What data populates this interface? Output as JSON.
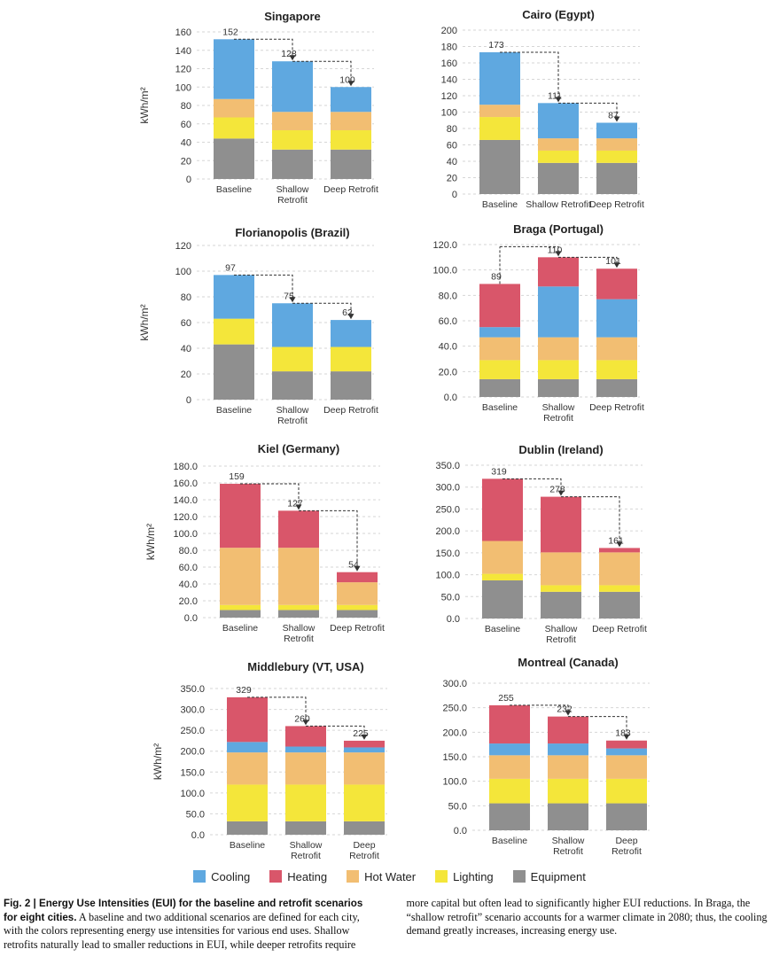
{
  "colors": {
    "Cooling": "#5fa8e0",
    "Heating": "#d9566a",
    "Hot Water": "#f2be72",
    "Lighting": "#f4e63a",
    "Equipment": "#8f8f8f"
  },
  "legend": [
    "Cooling",
    "Heating",
    "Hot Water",
    "Lighting",
    "Equipment"
  ],
  "caption": {
    "bold": "Fig. 2 | Energy Use Intensities (EUI) for the baseline and retrofit scenarios for eight cities.",
    "text": "A baseline and two additional scenarios are defined for each city, with the colors representing energy use intensities for various end uses. Shallow retrofits naturally lead to smaller reductions in EUI, while deeper retrofits require more capital but often lead to significantly higher EUI reductions. In Braga, the “shallow retrofit” scenario accounts for a warmer climate in 2080; thus, the cooling demand greatly increases, increasing energy use."
  },
  "chart_data": [
    {
      "type": "bar",
      "stacked": true,
      "title": "Singapore",
      "ylabel": "kWh/m²",
      "ylim": [
        0,
        160
      ],
      "yticks": [
        "0",
        "20",
        "40",
        "60",
        "80",
        "100",
        "120",
        "140",
        "160"
      ],
      "categories": [
        "Baseline",
        "Shallow\nRetrofit",
        "Deep Retrofit"
      ],
      "totals": [
        "152",
        "128",
        "100"
      ],
      "series": [
        {
          "name": "Equipment",
          "values": [
            44,
            32,
            32
          ]
        },
        {
          "name": "Lighting",
          "values": [
            23,
            21,
            21
          ]
        },
        {
          "name": "Hot Water",
          "values": [
            20,
            20,
            20
          ]
        },
        {
          "name": "Heating",
          "values": [
            0,
            0,
            0
          ]
        },
        {
          "name": "Cooling",
          "values": [
            65,
            55,
            27
          ]
        }
      ]
    },
    {
      "type": "bar",
      "stacked": true,
      "title": "Cairo (Egypt)",
      "ylabel": "",
      "ylim": [
        0,
        200
      ],
      "yticks": [
        "0",
        "20",
        "40",
        "60",
        "80",
        "100",
        "120",
        "140",
        "160",
        "180",
        "200"
      ],
      "categories": [
        "Baseline",
        "Shallow Retrofit",
        "Deep Retrofit"
      ],
      "totals": [
        "173",
        "111",
        "87"
      ],
      "series": [
        {
          "name": "Equipment",
          "values": [
            66,
            38,
            38
          ]
        },
        {
          "name": "Lighting",
          "values": [
            28,
            15,
            15
          ]
        },
        {
          "name": "Hot Water",
          "values": [
            15,
            15,
            15
          ]
        },
        {
          "name": "Heating",
          "values": [
            0,
            0,
            0
          ]
        },
        {
          "name": "Cooling",
          "values": [
            64,
            43,
            19
          ]
        }
      ]
    },
    {
      "type": "bar",
      "stacked": true,
      "title": "Florianopolis (Brazil)",
      "ylabel": "kWh/m²",
      "ylim": [
        0,
        120
      ],
      "yticks": [
        "0",
        "20",
        "40",
        "60",
        "80",
        "100",
        "120"
      ],
      "categories": [
        "Baseline",
        "Shallow\nRetrofit",
        "Deep Retrofit"
      ],
      "totals": [
        "97",
        "75",
        "62"
      ],
      "series": [
        {
          "name": "Equipment",
          "values": [
            43,
            22,
            22
          ]
        },
        {
          "name": "Lighting",
          "values": [
            20,
            19,
            19
          ]
        },
        {
          "name": "Hot Water",
          "values": [
            0,
            0,
            0
          ]
        },
        {
          "name": "Heating",
          "values": [
            0,
            0,
            0
          ]
        },
        {
          "name": "Cooling",
          "values": [
            34,
            34,
            21
          ]
        }
      ]
    },
    {
      "type": "bar",
      "stacked": true,
      "title": "Braga (Portugal)",
      "ylabel": "",
      "ylim": [
        0,
        120
      ],
      "yticks": [
        "0.0",
        "20.0",
        "40.0",
        "60.0",
        "80.0",
        "100.0",
        "120.0"
      ],
      "categories": [
        "Baseline",
        "Shallow\nRetrofit",
        "Deep Retrofit"
      ],
      "totals": [
        "89",
        "110",
        "101"
      ],
      "series": [
        {
          "name": "Equipment",
          "values": [
            14,
            14,
            14
          ]
        },
        {
          "name": "Lighting",
          "values": [
            15,
            15,
            15
          ]
        },
        {
          "name": "Hot Water",
          "values": [
            18,
            18,
            18
          ]
        },
        {
          "name": "Cooling",
          "values": [
            8,
            40,
            30
          ]
        },
        {
          "name": "Heating",
          "values": [
            34,
            23,
            24
          ]
        }
      ]
    },
    {
      "type": "bar",
      "stacked": true,
      "title": "Kiel (Germany)",
      "ylabel": "kWh/m²",
      "ylim": [
        0,
        180
      ],
      "yticks": [
        "0.0",
        "20.0",
        "40.0",
        "60.0",
        "80.0",
        "100.0",
        "120.0",
        "140.0",
        "160.0",
        "180.0"
      ],
      "categories": [
        "Baseline",
        "Shallow\nRetrofit",
        "Deep Retrofit"
      ],
      "totals": [
        "159",
        "127",
        "54"
      ],
      "series": [
        {
          "name": "Equipment",
          "values": [
            9,
            9,
            9
          ]
        },
        {
          "name": "Lighting",
          "values": [
            6,
            6,
            6
          ]
        },
        {
          "name": "Hot Water",
          "values": [
            68,
            68,
            27
          ]
        },
        {
          "name": "Cooling",
          "values": [
            0,
            0,
            0
          ]
        },
        {
          "name": "Heating",
          "values": [
            76,
            44,
            12
          ]
        }
      ]
    },
    {
      "type": "bar",
      "stacked": true,
      "title": "Dublin (Ireland)",
      "ylabel": "",
      "ylim": [
        0,
        350
      ],
      "yticks": [
        "0.0",
        "50.0",
        "100.0",
        "150.0",
        "200.0",
        "250.0",
        "300.0",
        "350.0"
      ],
      "categories": [
        "Baseline",
        "Shallow\nRetrofit",
        "Deep Retrofit"
      ],
      "totals": [
        "319",
        "278",
        "161"
      ],
      "series": [
        {
          "name": "Equipment",
          "values": [
            87,
            61,
            61
          ]
        },
        {
          "name": "Lighting",
          "values": [
            15,
            15,
            15
          ]
        },
        {
          "name": "Hot Water",
          "values": [
            75,
            75,
            75
          ]
        },
        {
          "name": "Cooling",
          "values": [
            0,
            0,
            0
          ]
        },
        {
          "name": "Heating",
          "values": [
            142,
            127,
            10
          ]
        }
      ]
    },
    {
      "type": "bar",
      "stacked": true,
      "title": "Middlebury (VT, USA)",
      "ylabel": "kWh/m²",
      "ylim": [
        0,
        350
      ],
      "yticks": [
        "0.0",
        "50.0",
        "100.0",
        "150.0",
        "200.0",
        "250.0",
        "300.0",
        "350.0"
      ],
      "categories": [
        "Baseline",
        "Shallow\nRetrofit",
        "Deep\nRetrofit"
      ],
      "totals": [
        "329",
        "260",
        "225"
      ],
      "series": [
        {
          "name": "Equipment",
          "values": [
            32,
            32,
            32
          ]
        },
        {
          "name": "Lighting",
          "values": [
            88,
            88,
            88
          ]
        },
        {
          "name": "Hot Water",
          "values": [
            77,
            77,
            77
          ]
        },
        {
          "name": "Cooling",
          "values": [
            25,
            14,
            12
          ]
        },
        {
          "name": "Heating",
          "values": [
            107,
            49,
            16
          ]
        }
      ]
    },
    {
      "type": "bar",
      "stacked": true,
      "title": "Montreal (Canada)",
      "ylabel": "",
      "ylim": [
        0,
        300
      ],
      "yticks": [
        "0.0",
        "50.0",
        "100.0",
        "150.0",
        "200.0",
        "250.0",
        "300.0"
      ],
      "categories": [
        "Baseline",
        "Shallow\nRetrofit",
        "Deep\nRetrofit"
      ],
      "totals": [
        "255",
        "232",
        "183"
      ],
      "series": [
        {
          "name": "Equipment",
          "values": [
            55,
            55,
            55
          ]
        },
        {
          "name": "Lighting",
          "values": [
            50,
            50,
            50
          ]
        },
        {
          "name": "Hot Water",
          "values": [
            48,
            48,
            48
          ]
        },
        {
          "name": "Cooling",
          "values": [
            24,
            24,
            14
          ]
        },
        {
          "name": "Heating",
          "values": [
            78,
            55,
            16
          ]
        }
      ]
    }
  ]
}
